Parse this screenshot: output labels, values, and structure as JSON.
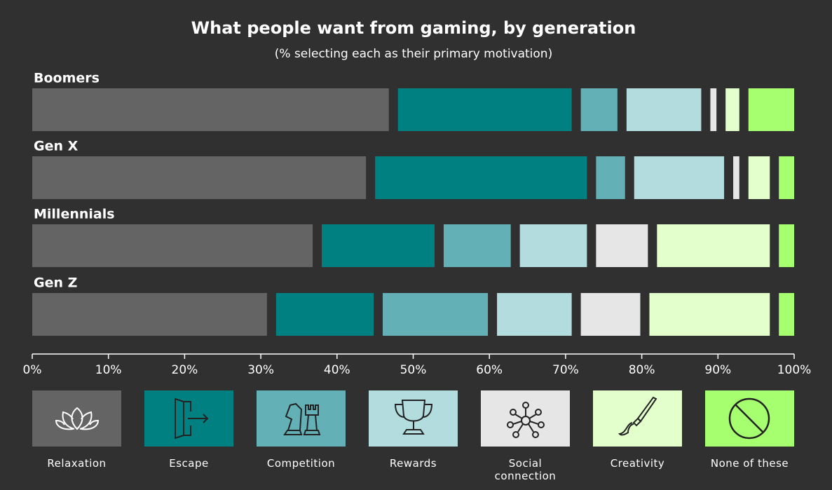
{
  "chart_data": {
    "type": "stacked-bar",
    "title": "What people want from gaming, by generation",
    "subtitle": "(% selecting each as their primary motivation)",
    "categories": [
      "Boomers",
      "Gen X",
      "Millennials",
      "Gen Z"
    ],
    "series": [
      {
        "name": "Relaxation",
        "color": "#646464",
        "values": [
          48,
          45,
          38,
          32
        ]
      },
      {
        "name": "Escape",
        "color": "#008080",
        "values": [
          24,
          29,
          16,
          14
        ]
      },
      {
        "name": "Competition",
        "color": "#63b1b6",
        "values": [
          6,
          5,
          10,
          15
        ]
      },
      {
        "name": "Rewards",
        "color": "#b2dcdd",
        "values": [
          11,
          13,
          10,
          11
        ]
      },
      {
        "name": "Social connection",
        "color": "#e6e6e6",
        "values": [
          2,
          2,
          8,
          9
        ]
      },
      {
        "name": "Creativity",
        "color": "#e2ffcc",
        "values": [
          3,
          4,
          16,
          17
        ]
      },
      {
        "name": "None of these",
        "color": "#a6ff6e",
        "values": [
          6,
          2,
          2,
          2
        ]
      }
    ],
    "xlim": [
      0,
      100
    ],
    "xticks": [
      {
        "value": 0,
        "label": "0%"
      },
      {
        "value": 10,
        "label": "10%"
      },
      {
        "value": 20,
        "label": "20%"
      },
      {
        "value": 30,
        "label": "30%"
      },
      {
        "value": 40,
        "label": "40%"
      },
      {
        "value": 50,
        "label": "50%"
      },
      {
        "value": 60,
        "label": "60%"
      },
      {
        "value": 70,
        "label": "70%"
      },
      {
        "value": 80,
        "label": "80%"
      },
      {
        "value": 90,
        "label": "90%"
      },
      {
        "value": 100,
        "label": "100%"
      }
    ]
  }
}
